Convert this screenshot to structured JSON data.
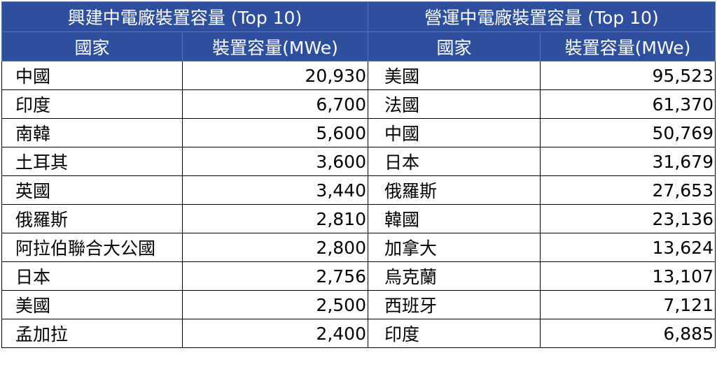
{
  "construction": {
    "title": "興建中電廠裝置容量 (Top 10)",
    "col_country": "國家",
    "col_capacity": "裝置容量(MWe)",
    "rows": [
      {
        "country": "中國",
        "capacity": "20,930"
      },
      {
        "country": "印度",
        "capacity": "6,700"
      },
      {
        "country": "南韓",
        "capacity": "5,600"
      },
      {
        "country": "土耳其",
        "capacity": "3,600"
      },
      {
        "country": "英國",
        "capacity": "3,440"
      },
      {
        "country": "俄羅斯",
        "capacity": "2,810"
      },
      {
        "country": "阿拉伯聯合大公國",
        "capacity": "2,800"
      },
      {
        "country": "日本",
        "capacity": "2,756"
      },
      {
        "country": "美國",
        "capacity": "2,500"
      },
      {
        "country": "孟加拉",
        "capacity": "2,400"
      }
    ]
  },
  "operating": {
    "title": "營運中電廠裝置容量 (Top 10)",
    "col_country": "國家",
    "col_capacity": "裝置容量(MWe)",
    "rows": [
      {
        "country": "美國",
        "capacity": "95,523"
      },
      {
        "country": "法國",
        "capacity": "61,370"
      },
      {
        "country": "中國",
        "capacity": "50,769"
      },
      {
        "country": "日本",
        "capacity": "31,679"
      },
      {
        "country": "俄羅斯",
        "capacity": "27,653"
      },
      {
        "country": "韓國",
        "capacity": "23,136"
      },
      {
        "country": "加拿大",
        "capacity": "13,624"
      },
      {
        "country": "烏克蘭",
        "capacity": "13,107"
      },
      {
        "country": "西班牙",
        "capacity": "7,121"
      },
      {
        "country": "印度",
        "capacity": "6,885"
      }
    ]
  },
  "colors": {
    "header_bg": "#2e4f9e",
    "header_text": "#ffffff",
    "border": "#000000"
  }
}
